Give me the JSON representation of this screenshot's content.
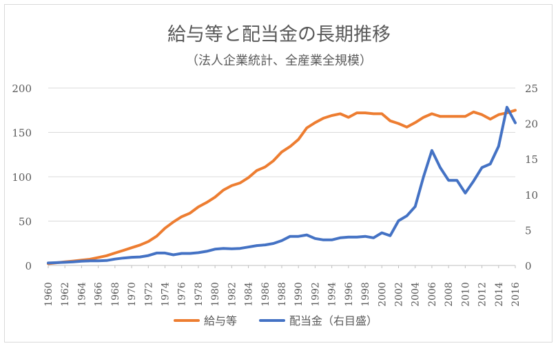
{
  "chart_data": {
    "type": "line",
    "title": "給与等と配当金の長期推移",
    "subtitle": "（法人企業統計、全産業全規模）",
    "x_ticks": [
      "1960",
      "1962",
      "1964",
      "1966",
      "1968",
      "1970",
      "1972",
      "1974",
      "1976",
      "1978",
      "1980",
      "1982",
      "1984",
      "1986",
      "1988",
      "1990",
      "1992",
      "1994",
      "1996",
      "1998",
      "2000",
      "2002",
      "2004",
      "2006",
      "2008",
      "2010",
      "2012",
      "2014",
      "2016"
    ],
    "y_left": {
      "min": 0,
      "max": 200,
      "ticks": [
        "0",
        "50",
        "100",
        "150",
        "200"
      ]
    },
    "y_right": {
      "min": 0,
      "max": 25,
      "ticks": [
        "0",
        "5",
        "10",
        "15",
        "20",
        "25"
      ]
    },
    "grid": true,
    "legend_position": "bottom",
    "x": [
      1960,
      1961,
      1962,
      1963,
      1964,
      1965,
      1966,
      1967,
      1968,
      1969,
      1970,
      1971,
      1972,
      1973,
      1974,
      1975,
      1976,
      1977,
      1978,
      1979,
      1980,
      1981,
      1982,
      1983,
      1984,
      1985,
      1986,
      1987,
      1988,
      1989,
      1990,
      1991,
      1992,
      1993,
      1994,
      1995,
      1996,
      1997,
      1998,
      1999,
      2000,
      2001,
      2002,
      2003,
      2004,
      2005,
      2006,
      2007,
      2008,
      2009,
      2010,
      2011,
      2012,
      2013,
      2014,
      2015,
      2016
    ],
    "series": [
      {
        "name": "給与等",
        "axis": "left",
        "color": "#ED7D31",
        "values": [
          2,
          3,
          4,
          5,
          6,
          7,
          9,
          11,
          14,
          17,
          20,
          23,
          27,
          33,
          42,
          49,
          55,
          59,
          66,
          71,
          77,
          85,
          90,
          93,
          99,
          107,
          111,
          118,
          128,
          134,
          142,
          155,
          161,
          166,
          169,
          171,
          167,
          172,
          172,
          171,
          171,
          163,
          160,
          156,
          161,
          167,
          171,
          168,
          168,
          168,
          168,
          173,
          170,
          165,
          170,
          172,
          175
        ]
      },
      {
        "name": "配当金（右目盛）",
        "axis": "right",
        "color": "#4472C4",
        "values": [
          0.35,
          0.4,
          0.45,
          0.5,
          0.6,
          0.65,
          0.65,
          0.7,
          0.9,
          1.05,
          1.15,
          1.2,
          1.4,
          1.75,
          1.75,
          1.5,
          1.7,
          1.7,
          1.8,
          2.0,
          2.3,
          2.4,
          2.35,
          2.4,
          2.6,
          2.8,
          2.9,
          3.1,
          3.5,
          4.1,
          4.1,
          4.3,
          3.8,
          3.6,
          3.6,
          3.9,
          4.0,
          4.0,
          4.1,
          3.9,
          4.6,
          4.2,
          6.3,
          7.0,
          8.3,
          12.5,
          16.2,
          13.8,
          12.0,
          12.0,
          10.2,
          11.9,
          13.8,
          14.3,
          16.8,
          22.3,
          20.1
        ]
      }
    ]
  }
}
